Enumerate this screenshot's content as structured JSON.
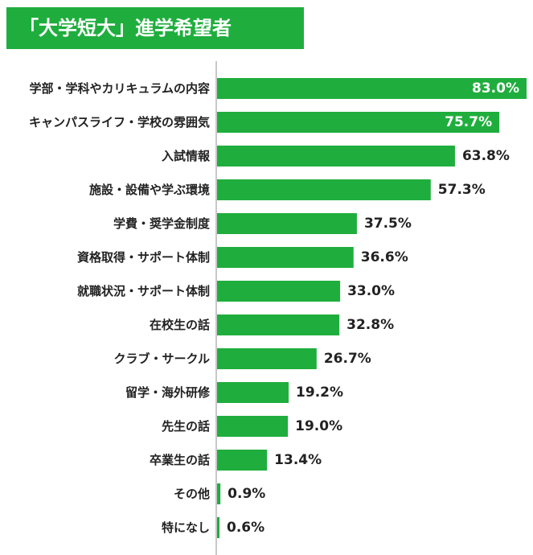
{
  "chart_data": {
    "type": "bar",
    "orientation": "horizontal",
    "title": "「大学短大」進学希望者",
    "categories": [
      "学部・学科やカリキュラムの内容",
      "キャンパスライフ・学校の雰囲気",
      "入試情報",
      "施設・設備や学ぶ環境",
      "学費・奨学金制度",
      "資格取得・サポート体制",
      "就職状況・サポート体制",
      "在校生の話",
      "クラブ・サークル",
      "留学・海外研修",
      "先生の話",
      "卒業生の話",
      "その他",
      "特になし"
    ],
    "values": [
      83.0,
      75.7,
      63.8,
      57.3,
      37.5,
      36.6,
      33.0,
      32.8,
      26.7,
      19.2,
      19.0,
      13.4,
      0.9,
      0.6
    ],
    "value_labels": [
      "83.0%",
      "75.7%",
      "63.8%",
      "57.3%",
      "37.5%",
      "36.6%",
      "33.0%",
      "32.8%",
      "26.7%",
      "19.2%",
      "19.0%",
      "13.4%",
      "0.9%",
      "0.6%"
    ],
    "labels_inside": [
      true,
      true,
      false,
      false,
      false,
      false,
      false,
      false,
      false,
      false,
      false,
      false,
      false,
      false
    ],
    "xlim": [
      0,
      83.0
    ],
    "grid": false,
    "colors": {
      "bar": "#1fae3d",
      "title_bg": "#1fae3d",
      "title_text": "#ffffff",
      "label": "#222222",
      "axis": "#c8c8c8"
    }
  }
}
